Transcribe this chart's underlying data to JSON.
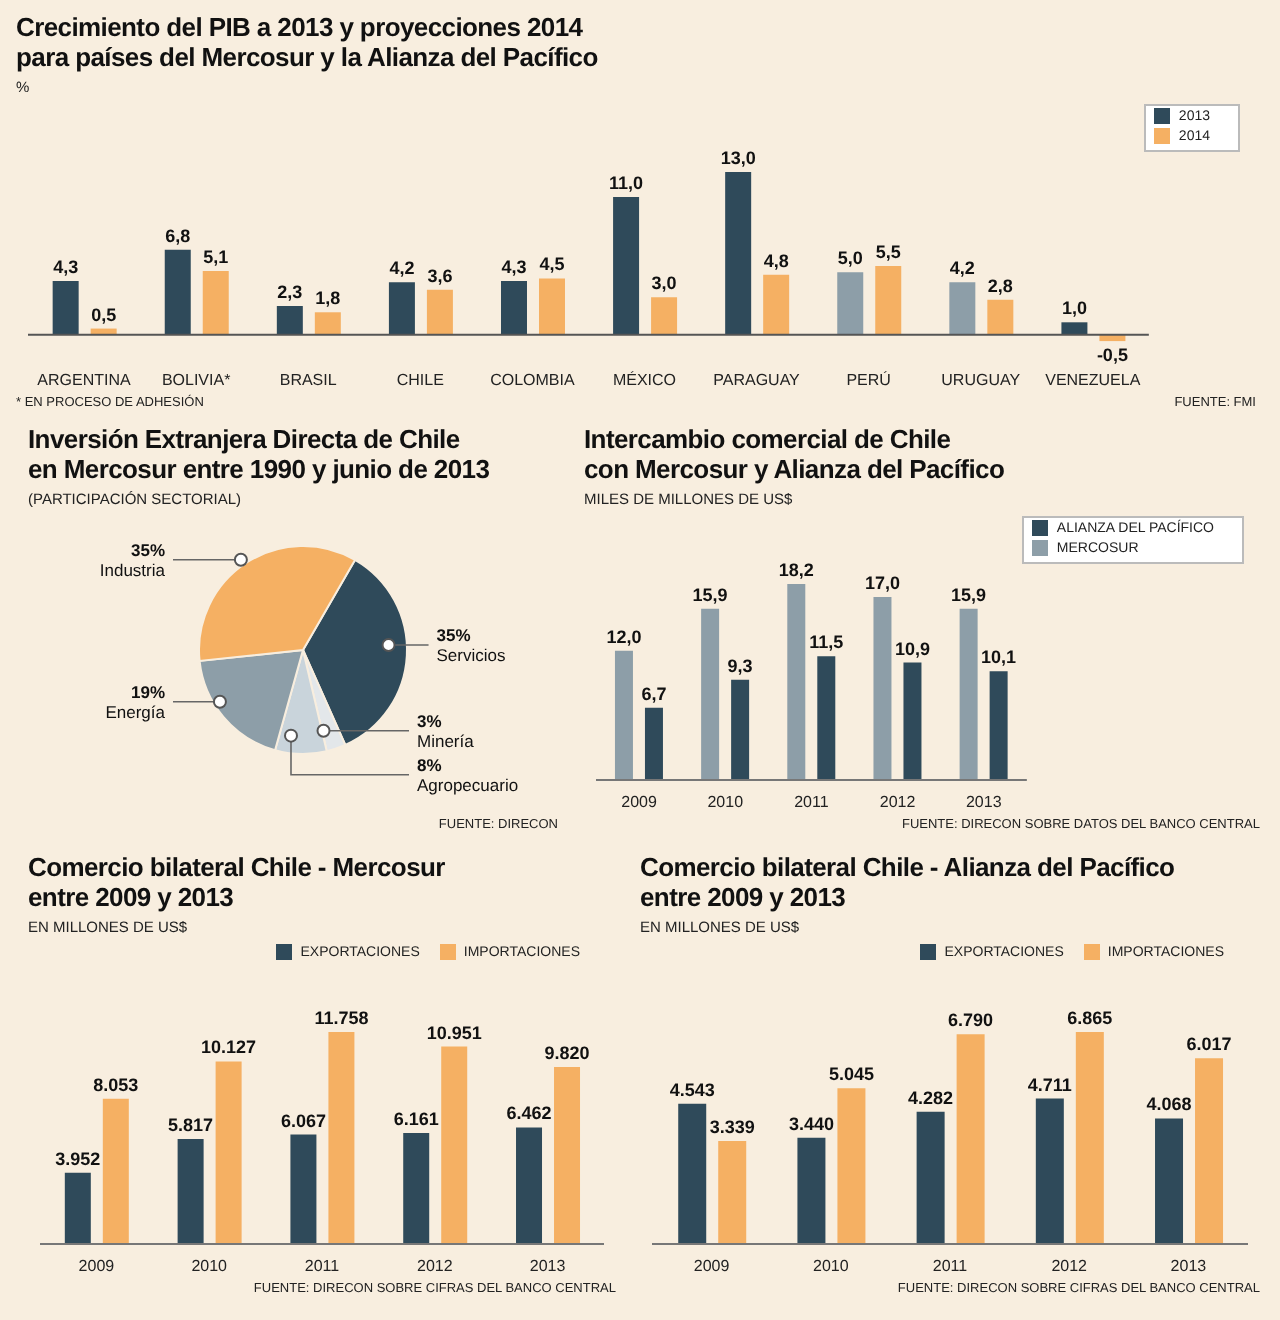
{
  "chart_data": [
    {
      "type": "bar",
      "title": "Crecimiento del PIB a 2013 y proyecciones 2014\npara países del Mercosur y la Alianza del Pacífico",
      "ylabel": "%",
      "categories": [
        "ARGENTINA",
        "BOLIVIA*",
        "BRASIL",
        "CHILE",
        "COLOMBIA",
        "MÉXICO",
        "PARAGUAY",
        "PERÚ",
        "URUGUAY",
        "VENEZUELA"
      ],
      "series": [
        {
          "name": "2013",
          "color": "#2f4a5a",
          "colors": [
            "#2f4a5a",
            "#2f4a5a",
            "#2f4a5a",
            "#2f4a5a",
            "#2f4a5a",
            "#2f4a5a",
            "#2f4a5a",
            "#8d9ea8",
            "#8d9ea8",
            "#2f4a5a"
          ],
          "values": [
            4.3,
            6.8,
            2.3,
            4.2,
            4.3,
            11.0,
            13.0,
            5.0,
            4.2,
            1.0
          ],
          "value_labels": [
            "4,3",
            "6,8",
            "2,3",
            "4,2",
            "4,3",
            "11,0",
            "13,0",
            "5,0",
            "4,2",
            "1,0"
          ]
        },
        {
          "name": "2014",
          "color": "#f5b063",
          "values": [
            0.5,
            5.1,
            1.8,
            3.6,
            4.5,
            3.0,
            4.8,
            5.5,
            2.8,
            -0.5
          ],
          "value_labels": [
            "0,5",
            "5,1",
            "1,8",
            "3,6",
            "4,5",
            "3,0",
            "4,8",
            "5,5",
            "2,8",
            "-0,5"
          ]
        }
      ],
      "legend": "top right",
      "tick_labels": "x",
      "annotations": [
        "* EN PROCESO DE ADHESIÓN",
        "FUENTE: FMI"
      ]
    },
    {
      "type": "pie",
      "title": "Inversión Extranjera Directa de Chile\nen Mercosur entre 1990 y junio de 2013",
      "subtitle": "(PARTICIPACIÓN SECTORIAL)",
      "categories": [
        "Servicios",
        "Minería",
        "Agropecuario",
        "Energía",
        "Industria"
      ],
      "values": [
        35,
        3,
        8,
        19,
        35
      ],
      "value_labels": [
        "35%",
        "3%",
        "8%",
        "19%",
        "35%"
      ],
      "colors": [
        "#2f4a5a",
        "#e3e7ea",
        "#c9d4db",
        "#8d9ea8",
        "#f5b063"
      ],
      "annotations": [
        "FUENTE: DIRECON"
      ]
    },
    {
      "type": "bar",
      "title": "Intercambio comercial de Chile\ncon Mercosur y Alianza del Pacífico",
      "ylabel": "MILES DE MILLONES DE US$",
      "categories": [
        "2009",
        "2010",
        "2011",
        "2012",
        "2013"
      ],
      "series": [
        {
          "name": "MERCOSUR",
          "color": "#8d9ea8",
          "values": [
            12.0,
            15.9,
            18.2,
            17.0,
            15.9
          ],
          "value_labels": [
            "12,0",
            "15,9",
            "18,2",
            "17,0",
            "15,9"
          ]
        },
        {
          "name": "ALIANZA DEL PACÍFICO",
          "color": "#2f4a5a",
          "values": [
            6.7,
            9.3,
            11.5,
            10.9,
            10.1
          ],
          "value_labels": [
            "6,7",
            "9,3",
            "11,5",
            "10,9",
            "10,1"
          ]
        }
      ],
      "legend": "top right",
      "tick_labels": "x",
      "annotations": [
        "FUENTE: DIRECON SOBRE DATOS DEL BANCO CENTRAL"
      ]
    },
    {
      "type": "bar",
      "title": "Comercio bilateral Chile - Mercosur\nentre 2009 y 2013",
      "ylabel": "EN MILLONES DE US$",
      "categories": [
        "2009",
        "2010",
        "2011",
        "2012",
        "2013"
      ],
      "series": [
        {
          "name": "EXPORTACIONES",
          "color": "#2f4a5a",
          "values": [
            3952,
            5817,
            6067,
            6161,
            6462
          ],
          "value_labels": [
            "3.952",
            "5.817",
            "6.067",
            "6.161",
            "6.462"
          ]
        },
        {
          "name": "IMPORTACIONES",
          "color": "#f5b063",
          "values": [
            8053,
            10127,
            11758,
            10951,
            9820
          ],
          "value_labels": [
            "8.053",
            "10.127",
            "11.758",
            "10.951",
            "9.820"
          ]
        }
      ],
      "legend": "top",
      "tick_labels": "x",
      "annotations": [
        "FUENTE: DIRECON SOBRE CIFRAS DEL BANCO CENTRAL"
      ]
    },
    {
      "type": "bar",
      "title": "Comercio bilateral Chile - Alianza del Pacífico\nentre 2009 y 2013",
      "ylabel": "EN MILLONES DE US$",
      "categories": [
        "2009",
        "2010",
        "2011",
        "2012",
        "2013"
      ],
      "series": [
        {
          "name": "EXPORTACIONES",
          "color": "#2f4a5a",
          "values": [
            4543,
            3440,
            4282,
            4711,
            4068
          ],
          "value_labels": [
            "4.543",
            "3.440",
            "4.282",
            "4.711",
            "4.068"
          ]
        },
        {
          "name": "IMPORTACIONES",
          "color": "#f5b063",
          "values": [
            3339,
            5045,
            6790,
            6865,
            6017
          ],
          "value_labels": [
            "3.339",
            "5.045",
            "6.790",
            "6.865",
            "6.017"
          ]
        }
      ],
      "legend": "top",
      "tick_labels": "x",
      "annotations": [
        "FUENTE: DIRECON SOBRE CIFRAS DEL BANCO CENTRAL"
      ]
    }
  ]
}
